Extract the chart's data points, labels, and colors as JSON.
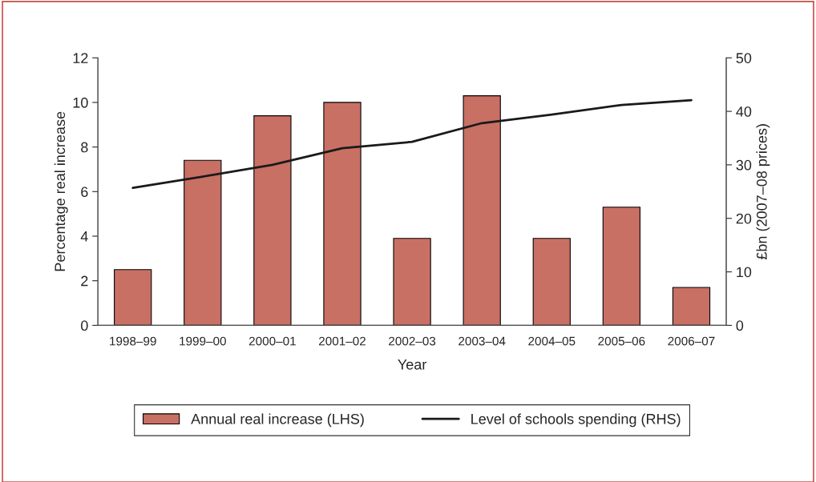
{
  "chart_data": {
    "type": "bar",
    "xlabel": "Year",
    "ylabel": "Percentage real increase",
    "y2label": "£bn (2007–08 prices)",
    "categories": [
      "1998–99",
      "1999–00",
      "2000–01",
      "2001–02",
      "2002–03",
      "2003–04",
      "2004–05",
      "2005–06",
      "2006–07"
    ],
    "series": [
      {
        "name": "Annual real increase (LHS)",
        "color": "#c87064",
        "values": [
          2.5,
          7.4,
          9.4,
          10.0,
          3.9,
          10.3,
          3.9,
          5.3,
          1.7
        ]
      },
      {
        "name": "Level of schools spending (RHS)",
        "type": "line",
        "axis": "y2",
        "color": "#1a1a1a",
        "values": [
          25.7,
          27.8,
          30.0,
          33.1,
          34.3,
          37.8,
          39.4,
          41.2,
          42.1
        ]
      }
    ],
    "ylim": [
      0,
      12
    ],
    "yticks": [
      0,
      2,
      4,
      6,
      8,
      10,
      12
    ],
    "y2lim": [
      0,
      50
    ],
    "y2ticks": [
      0,
      10,
      20,
      30,
      40,
      50
    ],
    "grid": false,
    "legend": "bottom",
    "marker": "none",
    "line_style": "solid"
  }
}
